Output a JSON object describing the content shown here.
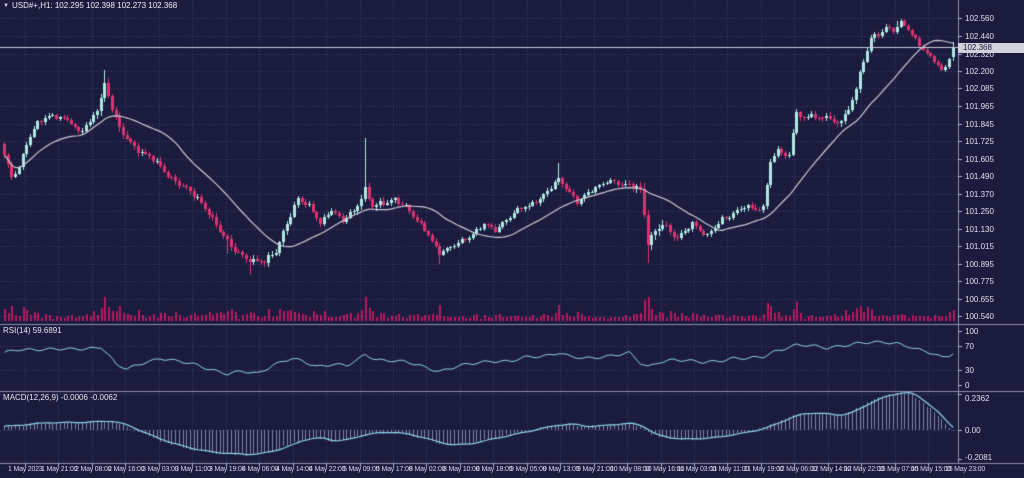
{
  "app": {
    "marker": "▼",
    "title": "USD#+,H1: 102.295 102.398 102.273 102.368"
  },
  "colors": {
    "background": "#1b1b3d",
    "grid": "#50578f",
    "up_candle": "#aee8e3",
    "down_candle": "#dd3372",
    "ma_line": "#c9c9d4",
    "indicator_line": "#8fd3ea",
    "macd_histogram": "#aab0d6",
    "volume": "#b4195e",
    "separator": "#8d8da4",
    "axis_text": "#dfe0ee",
    "price_tag_bg": "#d2d2dc",
    "price_tag_text": "#15153a",
    "current_price_line": "#c8cada"
  },
  "main_chart": {
    "price_axis_labels": [
      "102.560",
      "102.440",
      "102.320",
      "102.200",
      "102.085",
      "101.965",
      "101.845",
      "101.725",
      "101.605",
      "101.490",
      "101.370",
      "101.250",
      "101.130",
      "101.015",
      "100.895",
      "100.775",
      "100.655",
      "100.540"
    ],
    "current_price": "102.368"
  },
  "rsi": {
    "label": "RSI(14) 59.6891",
    "value": 59.6891,
    "axis_labels": [
      "100",
      "70",
      "30",
      "0"
    ],
    "axis_values": [
      100,
      70,
      30,
      0
    ],
    "levels": [
      70,
      30
    ]
  },
  "macd": {
    "label": "MACD(12,26,9) -0.0006 -0.0062",
    "main_value": -0.0006,
    "signal_value": -0.0062,
    "axis_labels": [
      "0.2362",
      "0.00",
      "-0.2081"
    ],
    "axis_values": [
      0.2362,
      0,
      -0.2081
    ]
  },
  "time_axis": {
    "labels": [
      "1 May 2023",
      "1 May 21:00",
      "2 May 08:00",
      "2 May 16:00",
      "3 May 03:00",
      "3 May 11:00",
      "3 May 19:00",
      "4 May 06:00",
      "4 May 14:00",
      "4 May 22:00",
      "5 May 09:00",
      "5 May 17:00",
      "8 May 02:00",
      "8 May 10:00",
      "8 May 18:00",
      "9 May 05:00",
      "9 May 13:00",
      "9 May 21:00",
      "10 May 08:00",
      "10 May 16:00",
      "11 May 03:00",
      "11 May 11:00",
      "11 May 19:00",
      "12 May 06:00",
      "12 May 14:00",
      "12 May 22:00",
      "15 May 07:00",
      "15 May 15:00",
      "15 May 23:00"
    ]
  },
  "chart_data": {
    "type": "candlestick",
    "symbol": "USD#+",
    "timeframe": "H1",
    "title": "USD#+,H1: 102.295 102.398 102.273 102.368",
    "bar_count": 256,
    "x_range": [
      "1 May 2023",
      "15 May 23:00"
    ],
    "price_view_max": 102.63,
    "price_view_min": 100.5,
    "last_bar": {
      "open": 102.295,
      "high": 102.398,
      "low": 102.273,
      "close": 102.368
    },
    "overlays": [
      {
        "name": "moving-average-line",
        "color": "#c9c9d4"
      }
    ],
    "close_anchors": [
      [
        0,
        101.62
      ],
      [
        2,
        101.48
      ],
      [
        4,
        101.55
      ],
      [
        6,
        101.72
      ],
      [
        9,
        101.85
      ],
      [
        13,
        101.9
      ],
      [
        17,
        101.88
      ],
      [
        20,
        101.78
      ],
      [
        23,
        101.85
      ],
      [
        26,
        102.02
      ],
      [
        27,
        102.12
      ],
      [
        29,
        101.95
      ],
      [
        31,
        101.8
      ],
      [
        34,
        101.72
      ],
      [
        37,
        101.65
      ],
      [
        40,
        101.6
      ],
      [
        44,
        101.5
      ],
      [
        48,
        101.42
      ],
      [
        52,
        101.33
      ],
      [
        55,
        101.25
      ],
      [
        58,
        101.12
      ],
      [
        61,
        101.0
      ],
      [
        64,
        100.95
      ],
      [
        67,
        100.92
      ],
      [
        70,
        100.9
      ],
      [
        73,
        100.98
      ],
      [
        76,
        101.18
      ],
      [
        79,
        101.33
      ],
      [
        82,
        101.28
      ],
      [
        85,
        101.18
      ],
      [
        88,
        101.26
      ],
      [
        91,
        101.18
      ],
      [
        94,
        101.26
      ],
      [
        97,
        101.4
      ],
      [
        99,
        101.28
      ],
      [
        102,
        101.3
      ],
      [
        105,
        101.34
      ],
      [
        108,
        101.28
      ],
      [
        111,
        101.18
      ],
      [
        114,
        101.1
      ],
      [
        117,
        100.97
      ],
      [
        120,
        101.0
      ],
      [
        123,
        101.05
      ],
      [
        126,
        101.1
      ],
      [
        129,
        101.16
      ],
      [
        132,
        101.12
      ],
      [
        135,
        101.2
      ],
      [
        138,
        101.26
      ],
      [
        141,
        101.28
      ],
      [
        144,
        101.34
      ],
      [
        147,
        101.42
      ],
      [
        149,
        101.46
      ],
      [
        151,
        101.4
      ],
      [
        154,
        101.32
      ],
      [
        157,
        101.38
      ],
      [
        160,
        101.42
      ],
      [
        163,
        101.46
      ],
      [
        166,
        101.44
      ],
      [
        169,
        101.42
      ],
      [
        171,
        101.38
      ],
      [
        173,
        101.05
      ],
      [
        175,
        101.12
      ],
      [
        177,
        101.18
      ],
      [
        179,
        101.1
      ],
      [
        181,
        101.06
      ],
      [
        183,
        101.12
      ],
      [
        185,
        101.18
      ],
      [
        187,
        101.12
      ],
      [
        189,
        101.08
      ],
      [
        191,
        101.14
      ],
      [
        193,
        101.2
      ],
      [
        196,
        101.24
      ],
      [
        199,
        101.28
      ],
      [
        202,
        101.26
      ],
      [
        204,
        101.28
      ],
      [
        206,
        101.6
      ],
      [
        208,
        101.66
      ],
      [
        210,
        101.63
      ],
      [
        211,
        101.62
      ],
      [
        213,
        101.93
      ],
      [
        215,
        101.88
      ],
      [
        217,
        101.92
      ],
      [
        219,
        101.86
      ],
      [
        221,
        101.9
      ],
      [
        223,
        101.85
      ],
      [
        225,
        101.88
      ],
      [
        227,
        101.94
      ],
      [
        229,
        102.08
      ],
      [
        231,
        102.26
      ],
      [
        233,
        102.43
      ],
      [
        235,
        102.46
      ],
      [
        237,
        102.5
      ],
      [
        239,
        102.47
      ],
      [
        241,
        102.53
      ],
      [
        243,
        102.49
      ],
      [
        245,
        102.42
      ],
      [
        247,
        102.35
      ],
      [
        249,
        102.29
      ],
      [
        251,
        102.24
      ],
      [
        252,
        102.2
      ],
      [
        253,
        102.23
      ],
      [
        254,
        102.295
      ],
      [
        255,
        102.368
      ]
    ],
    "volatility_anchors": [
      [
        0,
        0.05
      ],
      [
        20,
        0.04
      ],
      [
        27,
        0.08
      ],
      [
        40,
        0.05
      ],
      [
        60,
        0.06
      ],
      [
        75,
        0.06
      ],
      [
        90,
        0.04
      ],
      [
        97,
        0.07
      ],
      [
        110,
        0.04
      ],
      [
        125,
        0.04
      ],
      [
        140,
        0.04
      ],
      [
        150,
        0.05
      ],
      [
        163,
        0.03
      ],
      [
        172,
        0.09
      ],
      [
        185,
        0.04
      ],
      [
        205,
        0.05
      ],
      [
        215,
        0.05
      ],
      [
        232,
        0.06
      ],
      [
        240,
        0.035
      ],
      [
        250,
        0.03
      ],
      [
        255,
        0.03
      ]
    ],
    "wick_spikes": [
      {
        "i": 27,
        "up": 0.05
      },
      {
        "i": 60,
        "down": 0.08
      },
      {
        "i": 66,
        "down": 0.06
      },
      {
        "i": 97,
        "up": 0.3
      },
      {
        "i": 117,
        "down": 0.05
      },
      {
        "i": 149,
        "up": 0.09
      },
      {
        "i": 173,
        "down": 0.1
      },
      {
        "i": 240,
        "up": 0.03
      }
    ],
    "rsi_anchors": [
      [
        0,
        58
      ],
      [
        4,
        64
      ],
      [
        10,
        66
      ],
      [
        18,
        64
      ],
      [
        24,
        68
      ],
      [
        26,
        70
      ],
      [
        28,
        55
      ],
      [
        30,
        38
      ],
      [
        33,
        30
      ],
      [
        38,
        44
      ],
      [
        42,
        50
      ],
      [
        46,
        44
      ],
      [
        52,
        38
      ],
      [
        56,
        30
      ],
      [
        60,
        22
      ],
      [
        64,
        26
      ],
      [
        68,
        24
      ],
      [
        72,
        38
      ],
      [
        77,
        48
      ],
      [
        80,
        44
      ],
      [
        84,
        36
      ],
      [
        88,
        40
      ],
      [
        92,
        36
      ],
      [
        95,
        46
      ],
      [
        97,
        56
      ],
      [
        100,
        48
      ],
      [
        104,
        46
      ],
      [
        108,
        42
      ],
      [
        112,
        36
      ],
      [
        117,
        28
      ],
      [
        121,
        34
      ],
      [
        126,
        40
      ],
      [
        131,
        46
      ],
      [
        136,
        44
      ],
      [
        140,
        50
      ],
      [
        145,
        54
      ],
      [
        149,
        60
      ],
      [
        152,
        52
      ],
      [
        156,
        48
      ],
      [
        160,
        52
      ],
      [
        164,
        56
      ],
      [
        168,
        58
      ],
      [
        171,
        40
      ],
      [
        173,
        34
      ],
      [
        176,
        44
      ],
      [
        180,
        48
      ],
      [
        184,
        44
      ],
      [
        188,
        42
      ],
      [
        192,
        46
      ],
      [
        196,
        50
      ],
      [
        200,
        48
      ],
      [
        204,
        52
      ],
      [
        207,
        62
      ],
      [
        210,
        68
      ],
      [
        213,
        72
      ],
      [
        217,
        70
      ],
      [
        221,
        68
      ],
      [
        225,
        72
      ],
      [
        229,
        74
      ],
      [
        233,
        76
      ],
      [
        237,
        78
      ],
      [
        240,
        76
      ],
      [
        243,
        70
      ],
      [
        245,
        64
      ],
      [
        248,
        60
      ],
      [
        250,
        56
      ],
      [
        252,
        52
      ],
      [
        254,
        56
      ],
      [
        255,
        59.69
      ]
    ],
    "macd_anchors": [
      [
        0,
        0.02
      ],
      [
        6,
        0.035
      ],
      [
        12,
        0.045
      ],
      [
        18,
        0.045
      ],
      [
        24,
        0.05
      ],
      [
        28,
        0.055
      ],
      [
        32,
        0.03
      ],
      [
        36,
        -0.01
      ],
      [
        40,
        -0.05
      ],
      [
        45,
        -0.09
      ],
      [
        50,
        -0.12
      ],
      [
        55,
        -0.14
      ],
      [
        60,
        -0.15
      ],
      [
        64,
        -0.155
      ],
      [
        68,
        -0.15
      ],
      [
        72,
        -0.13
      ],
      [
        76,
        -0.1
      ],
      [
        80,
        -0.06
      ],
      [
        84,
        -0.05
      ],
      [
        88,
        -0.07
      ],
      [
        92,
        -0.06
      ],
      [
        96,
        -0.03
      ],
      [
        100,
        -0.02
      ],
      [
        104,
        -0.015
      ],
      [
        108,
        -0.03
      ],
      [
        112,
        -0.05
      ],
      [
        116,
        -0.08
      ],
      [
        120,
        -0.095
      ],
      [
        124,
        -0.09
      ],
      [
        128,
        -0.07
      ],
      [
        132,
        -0.05
      ],
      [
        136,
        -0.03
      ],
      [
        140,
        -0.01
      ],
      [
        144,
        0.01
      ],
      [
        148,
        0.03
      ],
      [
        152,
        0.035
      ],
      [
        156,
        0.02
      ],
      [
        160,
        0.025
      ],
      [
        164,
        0.035
      ],
      [
        168,
        0.04
      ],
      [
        171,
        0.02
      ],
      [
        174,
        -0.03
      ],
      [
        178,
        -0.05
      ],
      [
        182,
        -0.06
      ],
      [
        186,
        -0.055
      ],
      [
        190,
        -0.05
      ],
      [
        194,
        -0.035
      ],
      [
        198,
        -0.02
      ],
      [
        202,
        0.0
      ],
      [
        205,
        0.02
      ],
      [
        208,
        0.05
      ],
      [
        211,
        0.08
      ],
      [
        214,
        0.1
      ],
      [
        217,
        0.105
      ],
      [
        220,
        0.1
      ],
      [
        223,
        0.09
      ],
      [
        226,
        0.1
      ],
      [
        229,
        0.13
      ],
      [
        232,
        0.17
      ],
      [
        235,
        0.2
      ],
      [
        238,
        0.22
      ],
      [
        241,
        0.235
      ],
      [
        244,
        0.22
      ],
      [
        247,
        0.17
      ],
      [
        250,
        0.11
      ],
      [
        252,
        0.06
      ],
      [
        254,
        0.015
      ],
      [
        255,
        -0.0006
      ]
    ]
  }
}
